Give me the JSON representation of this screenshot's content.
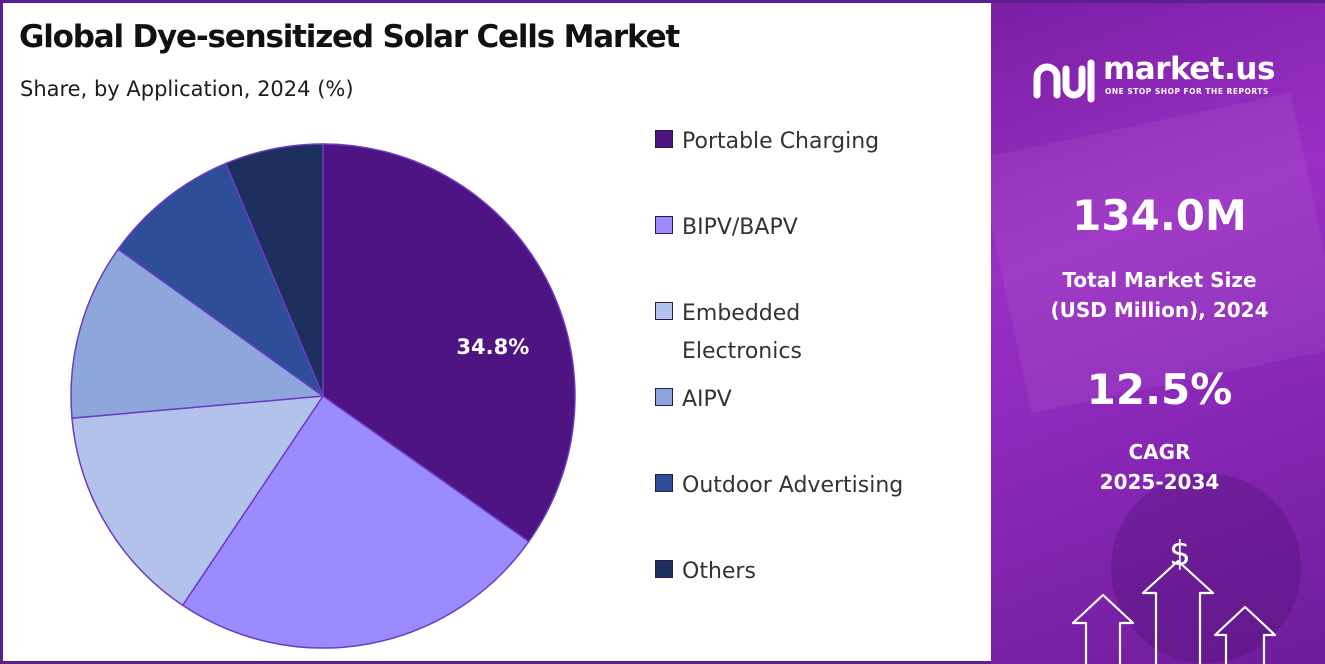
{
  "chart_data": {
    "type": "pie",
    "title": "Global Dye-sensitized Solar Cells Market",
    "subtitle": "Share, by Application, 2024 (%)",
    "categories": [
      "Portable Charging",
      "BIPV/BAPV",
      "Embedded Electronics",
      "AIPV",
      "Outdoor Advertising",
      "Others"
    ],
    "values": [
      34.8,
      24.6,
      14.2,
      11.3,
      8.8,
      6.3
    ],
    "colors": [
      "#4e1482",
      "#9a8cff",
      "#b3c2ea",
      "#8fa6dc",
      "#2e4f98",
      "#1c2f5e"
    ],
    "data_labels": [
      "34.8%",
      "",
      "",
      "",
      "",
      ""
    ],
    "legend_position": "right"
  },
  "legend": {
    "items": [
      {
        "label": "Portable Charging",
        "color": "#4e1482"
      },
      {
        "label": "BIPV/BAPV",
        "color": "#9a8cff"
      },
      {
        "label": "Embedded Electronics",
        "color": "#b3c2ea"
      },
      {
        "label": "AIPV",
        "color": "#8fa6dc"
      },
      {
        "label": "Outdoor Advertising",
        "color": "#2e4f98"
      },
      {
        "label": "Others",
        "color": "#1c2f5e"
      }
    ]
  },
  "brand": {
    "name": "market.us",
    "tagline": "ONE STOP SHOP FOR THE REPORTS"
  },
  "stats": {
    "market_size_value": "134.0M",
    "market_size_label_line1": "Total Market Size",
    "market_size_label_line2": "(USD Million), 2024",
    "cagr_value": "12.5%",
    "cagr_label_line1": "CAGR",
    "cagr_label_line2": "2025-2034"
  },
  "decor": {
    "currency_symbol": "$"
  }
}
